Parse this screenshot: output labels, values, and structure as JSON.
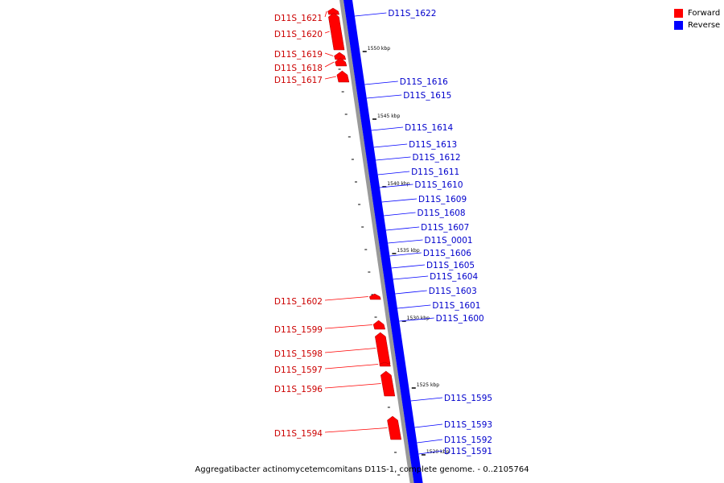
{
  "legend": {
    "forward_label": "Forward",
    "reverse_label": "Reverse",
    "forward_color": "#ff0000",
    "reverse_color": "#0000ff"
  },
  "caption": "Aggregatibacter actinomycetemcomitans D11S-1, complete genome. - 0..2105764",
  "colors": {
    "forward_feature": "#ff0000",
    "reverse_feature": "#0000ff",
    "backbone": "#999999",
    "forward_label": "#cc0000",
    "reverse_label": "#0000cc",
    "tick": "#000000"
  },
  "scale_ticks": [
    {
      "label": "1550 kbp",
      "kbp": 1550
    },
    {
      "label": "1545 kbp",
      "kbp": 1545
    },
    {
      "label": "1540 kbp",
      "kbp": 1540
    },
    {
      "label": "1535 kbp",
      "kbp": 1535
    },
    {
      "label": "1530 kbp",
      "kbp": 1530
    },
    {
      "label": "1525 kbp",
      "kbp": 1525
    },
    {
      "label": "1520 kbp",
      "kbp": 1520
    }
  ],
  "forward_genes": [
    "D11S_1621",
    "D11S_1620",
    "D11S_1619",
    "D11S_1618",
    "D11S_1617",
    "D11S_1602",
    "D11S_1599",
    "D11S_1598",
    "D11S_1597",
    "D11S_1596",
    "D11S_1594"
  ],
  "reverse_genes": [
    "D11S_1622",
    "D11S_1616",
    "D11S_1615",
    "D11S_1614",
    "D11S_1613",
    "D11S_1612",
    "D11S_1611",
    "D11S_1610",
    "D11S_1609",
    "D11S_1608",
    "D11S_1607",
    "D11S_0001",
    "D11S_1606",
    "D11S_1605",
    "D11S_1604",
    "D11S_1603",
    "D11S_1601",
    "D11S_1600",
    "D11S_1595",
    "D11S_1593",
    "D11S_1592",
    "D11S_1591"
  ]
}
